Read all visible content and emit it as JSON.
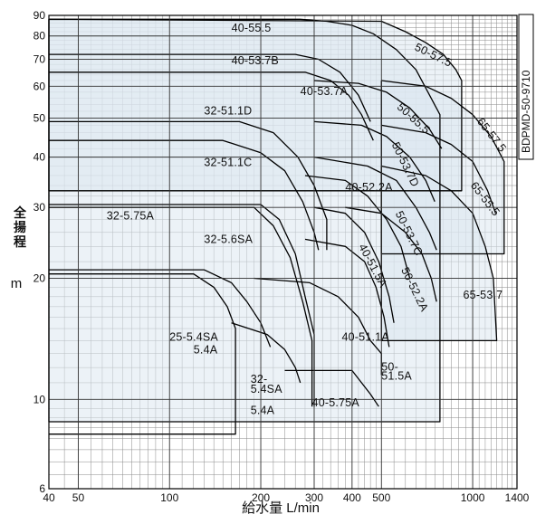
{
  "chart_data": {
    "type": "area",
    "xscale": "log",
    "yscale": "log",
    "xlim": [
      40,
      1400
    ],
    "ylim": [
      6,
      90
    ],
    "xticks": [
      {
        "v": 40,
        "label": "40"
      },
      {
        "v": 50,
        "label": "50"
      },
      {
        "v": 100,
        "label": "100"
      },
      {
        "v": 200,
        "label": "200"
      },
      {
        "v": 300,
        "label": "300"
      },
      {
        "v": 400,
        "label": "400"
      },
      {
        "v": 500,
        "label": "500"
      },
      {
        "v": 1000,
        "label": "1000"
      },
      {
        "v": 1400,
        "label": "1400"
      }
    ],
    "yticks": [
      {
        "v": 6,
        "label": "6"
      },
      {
        "v": 10,
        "label": "10"
      },
      {
        "v": 20,
        "label": "20"
      },
      {
        "v": 30,
        "label": "30"
      },
      {
        "v": 40,
        "label": "40"
      },
      {
        "v": 50,
        "label": "50"
      },
      {
        "v": 60,
        "label": "60"
      },
      {
        "v": 70,
        "label": "70"
      },
      {
        "v": 80,
        "label": "80"
      },
      {
        "v": 90,
        "label": "90"
      }
    ],
    "xlabel": "給水量 L/min",
    "ylabel_chars": [
      "全",
      "揚",
      "程"
    ],
    "ylabel_unit": "m",
    "code": "BDPMD-50-9710",
    "fill_color": "#dde7f1",
    "line_color": "#000000",
    "grid": true,
    "series": [
      {
        "name": "40-55.5",
        "points": [
          [
            40,
            88
          ],
          [
            270,
            88
          ],
          [
            330,
            87
          ],
          [
            400,
            85
          ],
          [
            470,
            81
          ],
          [
            560,
            74
          ],
          [
            650,
            66
          ],
          [
            780,
            51
          ],
          [
            780,
            8.8
          ],
          [
            40,
            8.8
          ]
        ]
      },
      {
        "name": "50-57.5",
        "points": [
          [
            40,
            88
          ],
          [
            500,
            87
          ],
          [
            600,
            82
          ],
          [
            700,
            77
          ],
          [
            800,
            72
          ],
          [
            880,
            66
          ],
          [
            920,
            62
          ],
          [
            920,
            33
          ],
          [
            40,
            33
          ]
        ]
      },
      {
        "name": "40-53.7B",
        "points": [
          [
            40,
            72
          ],
          [
            260,
            72
          ],
          [
            310,
            70
          ],
          [
            365,
            65
          ],
          [
            420,
            57
          ],
          [
            460,
            49
          ]
        ]
      },
      {
        "name": "40-53.7A",
        "points": [
          [
            40,
            65
          ],
          [
            280,
            65
          ],
          [
            340,
            62
          ],
          [
            390,
            57
          ],
          [
            430,
            51
          ],
          [
            470,
            44
          ]
        ]
      },
      {
        "name": "50-55.5",
        "points": [
          [
            300,
            62
          ],
          [
            420,
            61
          ],
          [
            520,
            58
          ],
          [
            620,
            53
          ],
          [
            720,
            47
          ],
          [
            790,
            42
          ]
        ]
      },
      {
        "name": "65-57.5",
        "points": [
          [
            500,
            62
          ],
          [
            700,
            60
          ],
          [
            850,
            56
          ],
          [
            1000,
            51
          ],
          [
            1150,
            45
          ],
          [
            1270,
            39
          ],
          [
            1270,
            23
          ],
          [
            500,
            23
          ]
        ]
      },
      {
        "name": "32-51.1D",
        "points": [
          [
            40,
            49
          ],
          [
            170,
            49
          ],
          [
            220,
            46
          ],
          [
            265,
            40
          ],
          [
            300,
            34
          ],
          [
            330,
            28
          ],
          [
            330,
            23.5
          ]
        ]
      },
      {
        "name": "32-51.1C",
        "points": [
          [
            40,
            44
          ],
          [
            150,
            44
          ],
          [
            200,
            41
          ],
          [
            240,
            37
          ],
          [
            275,
            31
          ],
          [
            300,
            26
          ],
          [
            310,
            23.5
          ]
        ]
      },
      {
        "name": "50-53.7D",
        "points": [
          [
            300,
            49
          ],
          [
            430,
            48
          ],
          [
            520,
            45
          ],
          [
            620,
            40
          ],
          [
            700,
            35
          ],
          [
            750,
            31
          ]
        ]
      },
      {
        "name": "65-55.5",
        "points": [
          [
            500,
            48
          ],
          [
            700,
            46
          ],
          [
            850,
            43
          ],
          [
            1000,
            39
          ],
          [
            1120,
            33
          ],
          [
            1190,
            29
          ]
        ]
      },
      {
        "name": "40-52.2A",
        "points": [
          [
            280,
            36
          ],
          [
            380,
            35
          ],
          [
            450,
            32
          ],
          [
            520,
            28
          ],
          [
            580,
            24
          ],
          [
            620,
            20
          ]
        ]
      },
      {
        "name": "50-53.7C",
        "points": [
          [
            300,
            40
          ],
          [
            450,
            38
          ],
          [
            560,
            35
          ],
          [
            650,
            30
          ],
          [
            720,
            26
          ],
          [
            760,
            23.5
          ]
        ]
      },
      {
        "name": "32-5.75A",
        "points": [
          [
            40,
            30.5
          ],
          [
            200,
            30.5
          ],
          [
            230,
            28
          ],
          [
            260,
            23
          ],
          [
            280,
            18
          ],
          [
            300,
            14.5
          ],
          [
            300,
            9.6
          ]
        ]
      },
      {
        "name": "32-5.6SA",
        "points": [
          [
            40,
            30
          ],
          [
            190,
            30
          ],
          [
            220,
            27
          ],
          [
            250,
            22.5
          ],
          [
            275,
            17.5
          ],
          [
            295,
            14
          ],
          [
            295,
            9.6
          ]
        ]
      },
      {
        "name": "40-51.5A",
        "points": [
          [
            300,
            30
          ],
          [
            380,
            29
          ],
          [
            440,
            26
          ],
          [
            490,
            22
          ],
          [
            530,
            18
          ],
          [
            550,
            15.5
          ]
        ]
      },
      {
        "name": "50-52.2A",
        "points": [
          [
            380,
            30
          ],
          [
            500,
            29
          ],
          [
            600,
            26
          ],
          [
            680,
            23
          ],
          [
            730,
            20
          ],
          [
            760,
            17.5
          ]
        ]
      },
      {
        "name": "65-53.7",
        "points": [
          [
            500,
            38
          ],
          [
            700,
            36
          ],
          [
            850,
            33
          ],
          [
            1000,
            29
          ],
          [
            1100,
            24
          ],
          [
            1170,
            20
          ],
          [
            1200,
            14
          ],
          [
            500,
            14
          ]
        ]
      },
      {
        "name": "25-5.4SA",
        "points": [
          [
            40,
            20.5
          ],
          [
            120,
            20.5
          ],
          [
            140,
            19
          ],
          [
            155,
            17
          ],
          [
            165,
            15
          ],
          [
            165,
            8.2
          ],
          [
            40,
            8.2
          ]
        ]
      },
      {
        "name": "5.4A",
        "points": [
          [
            40,
            21
          ],
          [
            130,
            21
          ],
          [
            160,
            19.5
          ],
          [
            180,
            17.5
          ],
          [
            200,
            15.5
          ],
          [
            215,
            13.5
          ]
        ]
      },
      {
        "name": "40-51.1A",
        "points": [
          [
            190,
            20
          ],
          [
            290,
            19.5
          ],
          [
            360,
            18
          ],
          [
            420,
            16
          ],
          [
            460,
            14
          ],
          [
            500,
            13
          ],
          [
            500,
            11.5
          ]
        ]
      },
      {
        "name": "50-51.5A",
        "points": [
          [
            280,
            25
          ],
          [
            380,
            24
          ],
          [
            440,
            22
          ],
          [
            480,
            19
          ],
          [
            510,
            16
          ],
          [
            530,
            13.5
          ]
        ]
      },
      {
        "name": "32-5.4SA",
        "points": [
          [
            160,
            15.5
          ],
          [
            210,
            14.5
          ],
          [
            240,
            13.3
          ],
          [
            260,
            12
          ],
          [
            270,
            11
          ]
        ]
      },
      {
        "name": "40-5.75A",
        "points": [
          [
            240,
            11.8
          ],
          [
            400,
            11.8
          ],
          [
            430,
            11
          ],
          [
            460,
            10.3
          ],
          [
            490,
            9.6
          ]
        ]
      }
    ],
    "labels": [
      {
        "text": "40-55.5",
        "x": 160,
        "y": 82,
        "rot": 0
      },
      {
        "text": "50-57.5",
        "x": 640,
        "y": 74,
        "rot": 26
      },
      {
        "text": "40-53.7B",
        "x": 160,
        "y": 68,
        "rot": 0
      },
      {
        "text": "40-53.7A",
        "x": 270,
        "y": 57,
        "rot": 0
      },
      {
        "text": "50-55.5",
        "x": 560,
        "y": 53,
        "rot": 42
      },
      {
        "text": "65-57.5",
        "x": 1030,
        "y": 49,
        "rot": 52
      },
      {
        "text": "32-51.1D",
        "x": 130,
        "y": 51,
        "rot": 0
      },
      {
        "text": "50-53.7D",
        "x": 540,
        "y": 43,
        "rot": 64
      },
      {
        "text": "32-51.1C",
        "x": 130,
        "y": 38,
        "rot": 0
      },
      {
        "text": "65-55.5",
        "x": 980,
        "y": 34,
        "rot": 52
      },
      {
        "text": "40-52.2A",
        "x": 380,
        "y": 33,
        "rot": 0
      },
      {
        "text": "50-53.7C",
        "x": 555,
        "y": 29,
        "rot": 64
      },
      {
        "text": "32-5.75A",
        "x": 62,
        "y": 28,
        "rot": 0
      },
      {
        "text": "40-51.5A",
        "x": 420,
        "y": 24,
        "rot": 62
      },
      {
        "text": "32-5.6SA",
        "x": 130,
        "y": 24.5,
        "rot": 0
      },
      {
        "text": "50-52.2A",
        "x": 580,
        "y": 21,
        "rot": 64
      },
      {
        "text": "65-53.7",
        "x": 930,
        "y": 17.8,
        "rot": 0
      },
      {
        "text": "25-5.4SA",
        "x": 100,
        "y": 14,
        "rot": 0
      },
      {
        "text": "5.4A",
        "x": 120,
        "y": 13,
        "rot": 0
      },
      {
        "text": "40-51.1A",
        "x": 370,
        "y": 14,
        "rot": 0
      },
      {
        "text": "50-",
        "x": 500,
        "y": 11.8,
        "rot": 0
      },
      {
        "text": "51.5A",
        "x": 500,
        "y": 11.2,
        "rot": 0
      },
      {
        "text": "32-",
        "x": 185,
        "y": 11,
        "rot": 0
      },
      {
        "text": "5.4SA",
        "x": 185,
        "y": 10.4,
        "rot": 0
      },
      {
        "text": "5.4A",
        "x": 185,
        "y": 9.2,
        "rot": 0
      },
      {
        "text": "40-5.75A",
        "x": 295,
        "y": 9.6,
        "rot": 0
      }
    ]
  }
}
